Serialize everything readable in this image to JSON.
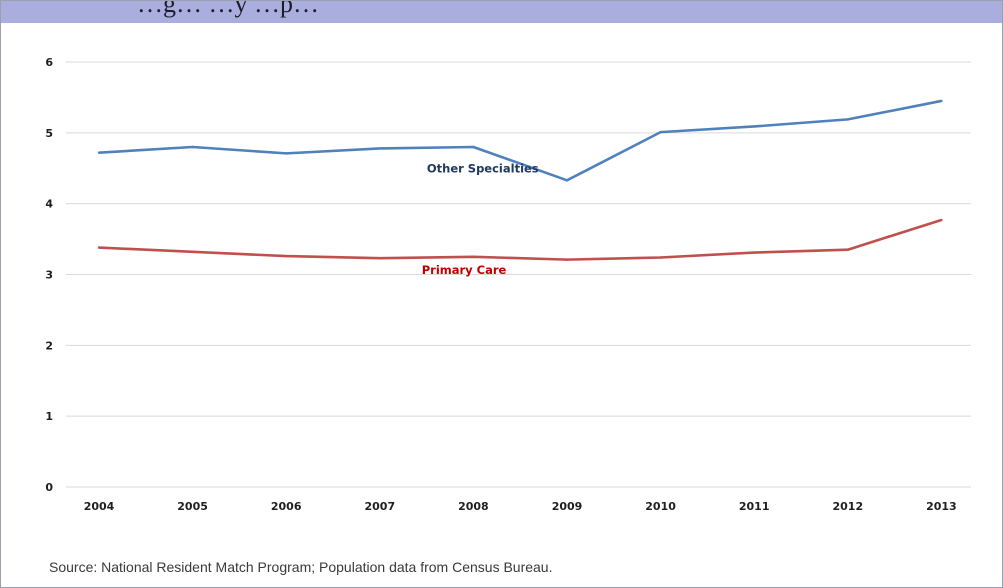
{
  "header": {
    "title": "…g… …y …p…",
    "background": "#a9aedf"
  },
  "chart_data": {
    "type": "line",
    "title": "",
    "xlabel": "",
    "ylabel": "",
    "categories": [
      "2004",
      "2005",
      "2006",
      "2007",
      "2008",
      "2009",
      "2010",
      "2011",
      "2012",
      "2013"
    ],
    "ylim": [
      0,
      6
    ],
    "yticks": [
      "0",
      "1",
      "2",
      "3",
      "4",
      "5",
      "6"
    ],
    "grid": true,
    "series": [
      {
        "name": "Other Specialties",
        "color": "#4f81bd",
        "label_color": "#1f3864",
        "values": [
          4.72,
          4.8,
          4.71,
          4.78,
          4.8,
          4.33,
          5.01,
          5.09,
          5.19,
          5.45
        ]
      },
      {
        "name": "Primary Care",
        "color": "#c0504d",
        "label_color": "#c00000",
        "values": [
          3.38,
          3.32,
          3.26,
          3.23,
          3.25,
          3.21,
          3.24,
          3.31,
          3.35,
          3.77
        ]
      }
    ]
  },
  "footer": {
    "source": "Source: National Resident Match Program; Population data from Census Bureau."
  }
}
